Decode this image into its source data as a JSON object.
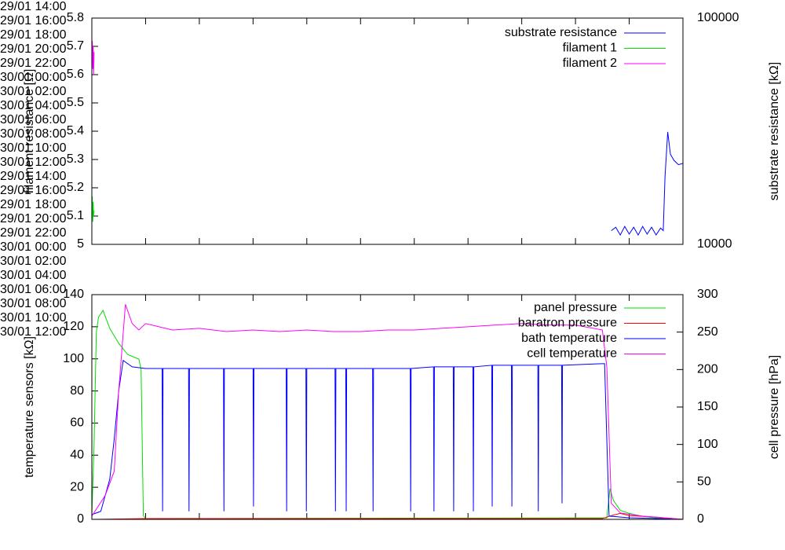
{
  "chart_data": [
    {
      "type": "line",
      "ylabel": "filament resistance [Ω]",
      "y2label": "substrate resistance [kΩ]",
      "xlim": [
        "29/01 14:00",
        "30/01 12:00"
      ],
      "xticks": [
        {
          "value": "29/01 14:00",
          "label": "29/01\n14:00"
        },
        {
          "value": "29/01 16:00",
          "label": "29/01\n16:00"
        },
        {
          "value": "29/01 18:00",
          "label": "29/01\n18:00"
        },
        {
          "value": "29/01 20:00",
          "label": "29/01\n20:00"
        },
        {
          "value": "29/01 22:00",
          "label": "29/01\n22:00"
        },
        {
          "value": "30/01 00:00",
          "label": "30/01\n00:00"
        },
        {
          "value": "30/01 02:00",
          "label": "30/01\n02:00"
        },
        {
          "value": "30/01 04:00",
          "label": "30/01\n04:00"
        },
        {
          "value": "30/01 06:00",
          "label": "30/01\n06:00"
        },
        {
          "value": "30/01 08:00",
          "label": "30/01\n08:00"
        },
        {
          "value": "30/01 10:00",
          "label": "30/01\n10:00"
        },
        {
          "value": "30/01 12:00",
          "label": "30/01\n12:00"
        }
      ],
      "ylim": [
        5,
        5.8
      ],
      "yticks": [
        5,
        5.1,
        5.2,
        5.3,
        5.4,
        5.5,
        5.6,
        5.7,
        5.8
      ],
      "y2lim": [
        10000,
        100000
      ],
      "y2ticks": [
        10000,
        100000
      ],
      "y2scale": "log",
      "legend": "top right",
      "series": [
        {
          "name": "substrate resistance",
          "color": "#0000ff",
          "axis": "y2",
          "x": [
            "30/01 09:20",
            "30/01 09:30",
            "30/01 09:40",
            "30/01 09:50",
            "30/01 10:00",
            "30/01 10:10",
            "30/01 10:20",
            "30/01 10:30",
            "30/01 10:40",
            "30/01 10:50",
            "30/01 11:00",
            "30/01 11:10",
            "30/01 11:16",
            "30/01 11:20",
            "30/01 11:26",
            "30/01 11:32",
            "30/01 11:40",
            "30/01 11:50",
            "30/01 12:00"
          ],
          "values": [
            11500,
            11900,
            11000,
            12000,
            11100,
            11900,
            11000,
            12000,
            11100,
            11900,
            11000,
            11800,
            11500,
            20000,
            31400,
            25000,
            23500,
            22500,
            22800
          ]
        },
        {
          "name": "filament 1",
          "color": "#00dd00",
          "x": [
            "29/01 14:00",
            "29/01 14:01",
            "29/01 14:02",
            "29/01 14:03",
            "29/01 14:04",
            "29/01 14:05"
          ],
          "values": [
            5.1,
            5.17,
            5.08,
            5.15,
            5.1,
            5.12
          ]
        },
        {
          "name": "filament 2",
          "color": "#ff00ff",
          "x": [
            "29/01 14:00",
            "29/01 14:01",
            "29/01 14:02",
            "29/01 14:03",
            "29/01 14:04",
            "29/01 14:05"
          ],
          "values": [
            5.7,
            5.72,
            5.62,
            5.7,
            5.6,
            5.68
          ]
        }
      ]
    },
    {
      "type": "line",
      "ylabel": "temperature sensors [kΩ]",
      "y2label": "cell pressure [hPa]",
      "xlim": [
        "29/01 14:00",
        "30/01 12:00"
      ],
      "xticks": [
        {
          "value": "29/01 14:00",
          "label": "29/01\n14:00"
        },
        {
          "value": "29/01 16:00",
          "label": "29/01\n16:00"
        },
        {
          "value": "29/01 18:00",
          "label": "29/01\n18:00"
        },
        {
          "value": "29/01 20:00",
          "label": "29/01\n20:00"
        },
        {
          "value": "29/01 22:00",
          "label": "29/01\n22:00"
        },
        {
          "value": "30/01 00:00",
          "label": "30/01\n00:00"
        },
        {
          "value": "30/01 02:00",
          "label": "30/01\n02:00"
        },
        {
          "value": "30/01 04:00",
          "label": "30/01\n04:00"
        },
        {
          "value": "30/01 06:00",
          "label": "30/01\n06:00"
        },
        {
          "value": "30/01 08:00",
          "label": "30/01\n08:00"
        },
        {
          "value": "30/01 10:00",
          "label": "30/01\n10:00"
        },
        {
          "value": "30/01 12:00",
          "label": "30/01\n12:00"
        }
      ],
      "ylim": [
        0,
        140
      ],
      "yticks": [
        0,
        20,
        40,
        60,
        80,
        100,
        120,
        140
      ],
      "y2lim": [
        0,
        300
      ],
      "y2ticks": [
        0,
        50,
        100,
        150,
        200,
        250,
        300
      ],
      "legend": "top right",
      "series": [
        {
          "name": "panel pressure",
          "color": "#00dd00",
          "axis": "y2",
          "x": [
            "29/01 14:00",
            "29/01 14:05",
            "29/01 14:10",
            "29/01 14:15",
            "29/01 14:25",
            "29/01 14:40",
            "29/01 15:00",
            "29/01 15:20",
            "29/01 15:45",
            "29/01 15:50",
            "29/01 15:55",
            "29/01 16:00",
            "30/01 09:10",
            "30/01 09:17",
            "30/01 09:25",
            "30/01 09:40",
            "30/01 10:00",
            "30/01 10:30",
            "30/01 11:00",
            "30/01 12:00"
          ],
          "values": [
            5,
            100,
            250,
            270,
            279,
            255,
            235,
            220,
            214,
            200,
            5,
            1,
            2,
            41,
            25,
            12,
            8,
            4,
            2,
            0
          ]
        },
        {
          "name": "baratron pressure",
          "color": "#ff0000",
          "axis": "y2",
          "x": [
            "29/01 14:00",
            "29/01 16:00",
            "30/01 09:00",
            "30/01 09:20",
            "30/01 09:40",
            "30/01 10:00",
            "30/01 11:00",
            "30/01 12:00"
          ],
          "values": [
            0,
            1,
            1,
            5,
            8,
            5,
            3,
            0
          ]
        },
        {
          "name": "bath temperature",
          "color": "#0000ff",
          "x": [
            "29/01 14:00",
            "29/01 14:20",
            "29/01 14:40",
            "29/01 14:50",
            "29/01 15:00",
            "29/01 15:10",
            "29/01 15:30",
            "29/01 16:00",
            "29/01 16:37",
            "29/01 16:38",
            "29/01 16:39",
            "29/01 17:36",
            "29/01 17:37",
            "29/01 17:38",
            "29/01 18:54",
            "29/01 18:55",
            "29/01 18:56",
            "29/01 20:00",
            "29/01 20:01",
            "29/01 20:02",
            "29/01 21:14",
            "29/01 21:15",
            "29/01 21:16",
            "29/01 21:58",
            "29/01 21:59",
            "29/01 22:00",
            "29/01 23:03",
            "29/01 23:04",
            "29/01 23:05",
            "29/01 23:27",
            "29/01 23:28",
            "29/01 23:29",
            "30/01 00:27",
            "30/01 00:28",
            "30/01 00:29",
            "30/01 01:51",
            "30/01 01:52",
            "30/01 01:53",
            "30/01 02:43",
            "30/01 02:44",
            "30/01 02:45",
            "30/01 03:27",
            "30/01 03:28",
            "30/01 03:29",
            "30/01 04:11",
            "30/01 04:12",
            "30/01 04:13",
            "30/01 04:53",
            "30/01 04:54",
            "30/01 04:55",
            "30/01 05:37",
            "30/01 05:38",
            "30/01 05:39",
            "30/01 06:36",
            "30/01 06:37",
            "30/01 06:38",
            "30/01 07:29",
            "30/01 07:30",
            "30/01 07:31",
            "30/01 09:00",
            "30/01 09:05",
            "30/01 09:15",
            "30/01 10:00",
            "30/01 12:00"
          ],
          "values": [
            3,
            5,
            25,
            50,
            80,
            99,
            95,
            94,
            94,
            5,
            94,
            94,
            5,
            94,
            94,
            5,
            94,
            94,
            8,
            94,
            94,
            5,
            94,
            94,
            5,
            94,
            94,
            5,
            94,
            94,
            5,
            94,
            94,
            5,
            94,
            94,
            5,
            94,
            95,
            5,
            95,
            95,
            5,
            95,
            95,
            5,
            95,
            96,
            8,
            96,
            96,
            8,
            96,
            96,
            5,
            96,
            96,
            10,
            96,
            97,
            97,
            2,
            1,
            0
          ]
        },
        {
          "name": "cell temperature",
          "color": "#ff00ff",
          "x": [
            "29/01 14:00",
            "29/01 14:30",
            "29/01 14:50",
            "29/01 15:00",
            "29/01 15:15",
            "29/01 15:30",
            "29/01 15:45",
            "29/01 16:00",
            "29/01 16:30",
            "29/01 17:00",
            "29/01 18:00",
            "29/01 19:00",
            "29/01 20:00",
            "29/01 21:00",
            "29/01 22:00",
            "29/01 23:00",
            "30/01 00:00",
            "30/01 01:00",
            "30/01 02:00",
            "30/01 03:00",
            "30/01 04:00",
            "30/01 05:00",
            "30/01 06:00",
            "30/01 07:00",
            "30/01 08:00",
            "30/01 09:00",
            "30/01 09:10",
            "30/01 09:20",
            "30/01 09:40",
            "30/01 10:30",
            "30/01 12:00"
          ],
          "values": [
            2,
            15,
            30,
            80,
            134,
            122,
            118,
            122,
            120,
            118,
            119,
            117,
            118,
            117,
            118,
            117,
            117,
            118,
            118,
            119,
            120,
            121,
            122,
            121,
            121,
            118,
            95,
            10,
            4,
            2,
            0
          ]
        }
      ]
    }
  ]
}
